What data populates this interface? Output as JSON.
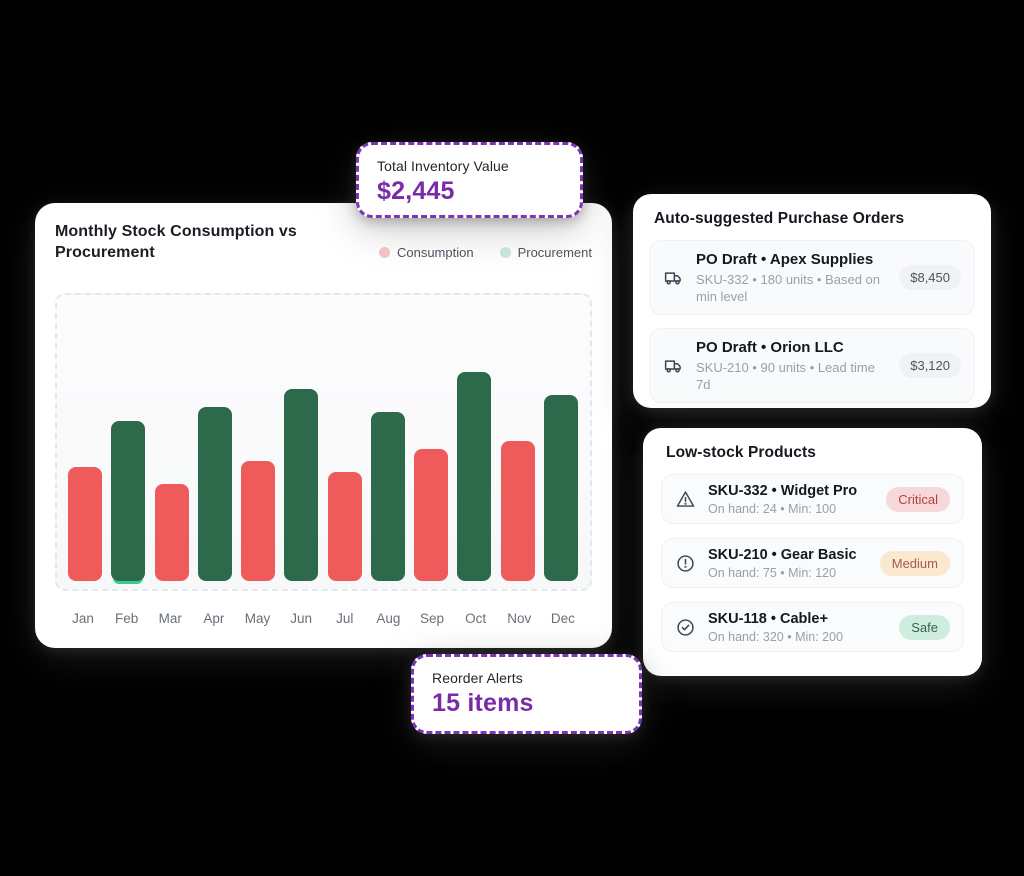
{
  "theme": {
    "background": "#000000",
    "card_background": "#FFFFFF",
    "accent_purple_border": "#7C35B5",
    "accent_purple_text": "#7A2BA8",
    "text_primary": "#14181F",
    "text_secondary": "#99A0AA"
  },
  "stat_cards": {
    "inventory": {
      "label": "Total Inventory Value",
      "value": "$2,445"
    },
    "reorder": {
      "label": "Reorder Alerts",
      "value": "15 items"
    }
  },
  "chart": {
    "title": "Monthly Stock Consumption vs Procurement",
    "legend": [
      {
        "label": "Consumption",
        "dot_color": "#F5C6C8"
      },
      {
        "label": "Procurement",
        "dot_color": "#CDE9DC"
      }
    ]
  },
  "chart_data": {
    "type": "bar",
    "title": "Monthly Stock Consumption vs Procurement",
    "categories": [
      "Jan",
      "Feb",
      "Mar",
      "Apr",
      "May",
      "Jun",
      "Jul",
      "Aug",
      "Sep",
      "Oct",
      "Nov",
      "Dec"
    ],
    "series_colors": {
      "Consumption": "#EF5B5B",
      "Procurement": "#2D6A4B"
    },
    "bars": [
      {
        "month": "Jan",
        "series": "Consumption",
        "value": 40
      },
      {
        "month": "Feb",
        "series": "Procurement",
        "value": 56,
        "accent": "#3BC98F"
      },
      {
        "month": "Mar",
        "series": "Consumption",
        "value": 34
      },
      {
        "month": "Apr",
        "series": "Procurement",
        "value": 61
      },
      {
        "month": "May",
        "series": "Consumption",
        "value": 42
      },
      {
        "month": "Jun",
        "series": "Procurement",
        "value": 67
      },
      {
        "month": "Jul",
        "series": "Consumption",
        "value": 38
      },
      {
        "month": "Aug",
        "series": "Procurement",
        "value": 59
      },
      {
        "month": "Sep",
        "series": "Consumption",
        "value": 46
      },
      {
        "month": "Oct",
        "series": "Procurement",
        "value": 73
      },
      {
        "month": "Nov",
        "series": "Consumption",
        "value": 49
      },
      {
        "month": "Dec",
        "series": "Procurement",
        "value": 65
      }
    ],
    "ylim": [
      0,
      100
    ],
    "grid": false,
    "legend_position": "top-right"
  },
  "purchase_orders": {
    "title": "Auto-suggested Purchase Orders",
    "rows": [
      {
        "icon": "truck-icon",
        "title": "PO Draft • Apex Supplies",
        "subtitle": "SKU-332 • 180 units • Based on min level",
        "amount": "$8,450"
      },
      {
        "icon": "truck-icon",
        "title": "PO Draft • Orion LLC",
        "subtitle": "SKU-210 • 90 units • Lead time 7d",
        "amount": "$3,120"
      }
    ]
  },
  "low_stock": {
    "title": "Low-stock Products",
    "rows": [
      {
        "icon": "warning-triangle-icon",
        "title": "SKU-332 • Widget Pro",
        "subtitle": "On hand: 24 • Min: 100",
        "badge": "Critical",
        "severity": "critical"
      },
      {
        "icon": "alert-circle-icon",
        "title": "SKU-210 • Gear Basic",
        "subtitle": "On hand: 75 • Min: 120",
        "badge": "Medium",
        "severity": "medium"
      },
      {
        "icon": "check-circle-icon",
        "title": "SKU-118 • Cable+",
        "subtitle": "On hand: 320 • Min: 200",
        "badge": "Safe",
        "severity": "safe"
      }
    ]
  },
  "status_colors": {
    "critical": {
      "bg": "#F7D8D8",
      "text": "#B2423F"
    },
    "medium": {
      "bg": "#FAE9CF",
      "text": "#A85B4B"
    },
    "safe": {
      "bg": "#CFEDDE",
      "text": "#35634F"
    }
  }
}
